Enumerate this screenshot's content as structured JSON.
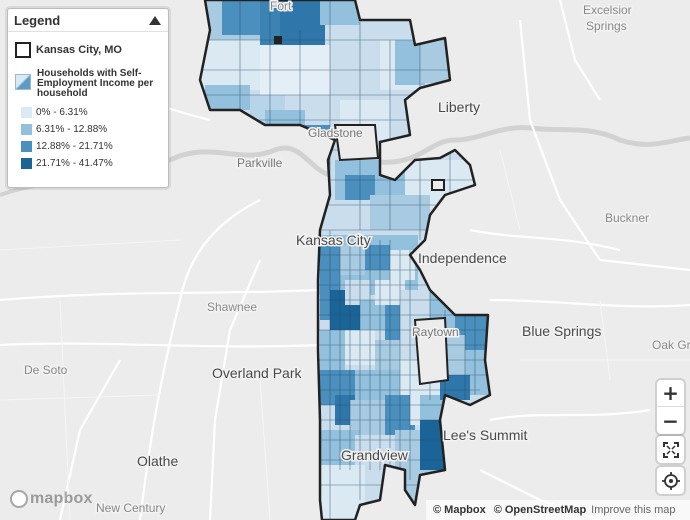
{
  "legend": {
    "title": "Legend",
    "boundary_label": "Kansas City, MO",
    "variable_label": "Households with Self-Employment Income per household",
    "bins": [
      {
        "label": "0% - 6.31%",
        "color": "#dbe9f3"
      },
      {
        "label": "6.31% - 12.88%",
        "color": "#93c0dc"
      },
      {
        "label": "12.88% - 21.71%",
        "color": "#4a8fbe"
      },
      {
        "label": "21.71% - 41.47%",
        "color": "#1b6497"
      }
    ]
  },
  "places": {
    "fort": "Fort",
    "excelsior": "Excelsior",
    "springs": "Springs",
    "liberty": "Liberty",
    "gladstone": "Gladstone",
    "parkville": "Parkville",
    "buckner": "Buckner",
    "kansas_city": "Kansas City",
    "independence": "Independence",
    "shawnee": "Shawnee",
    "raytown": "Raytown",
    "blue_springs": "Blue Springs",
    "oak_grove": "Oak Gr",
    "de_soto": "De Soto",
    "overland_park": "Overland Park",
    "lees_summit": "Lee's Summit",
    "grandview": "Grandview",
    "olathe": "Olathe",
    "new_century": "New Century"
  },
  "controls": {
    "zoom_in": "+",
    "zoom_out": "−",
    "fullscreen": "⛶",
    "locate": "◎"
  },
  "logo_text": "mapbox",
  "attribution": {
    "mapbox": "© Mapbox",
    "osm": "© OpenStreetMap",
    "improve": "Improve this map"
  }
}
